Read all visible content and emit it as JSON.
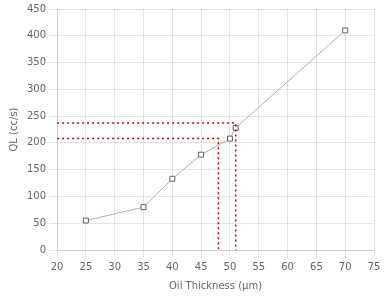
{
  "chart_data": {
    "type": "line",
    "xlabel": "Oil Thickness (μm)",
    "ylabel": "QL (cc/s)",
    "xlim": [
      20,
      75
    ],
    "ylim": [
      0,
      450
    ],
    "xticks": [
      20,
      25,
      30,
      35,
      40,
      45,
      50,
      55,
      60,
      65,
      70,
      75
    ],
    "yticks": [
      0,
      50,
      100,
      150,
      200,
      250,
      300,
      350,
      400,
      450
    ],
    "grid": true,
    "series": [
      {
        "x": [
          25,
          35,
          40,
          45,
          50,
          51,
          70
        ],
        "values": [
          55,
          80,
          133,
          178,
          208,
          228,
          410
        ],
        "color": "#b0b0b0",
        "marker": "square",
        "line_style": "solid"
      },
      {
        "x": [
          20,
          48,
          48
        ],
        "values": [
          208,
          208,
          0
        ],
        "color": "#cc0000",
        "line_style": "dotted"
      },
      {
        "x": [
          20,
          51,
          51
        ],
        "values": [
          237,
          237,
          0
        ],
        "color": "#cc0000",
        "line_style": "dotted"
      }
    ]
  }
}
